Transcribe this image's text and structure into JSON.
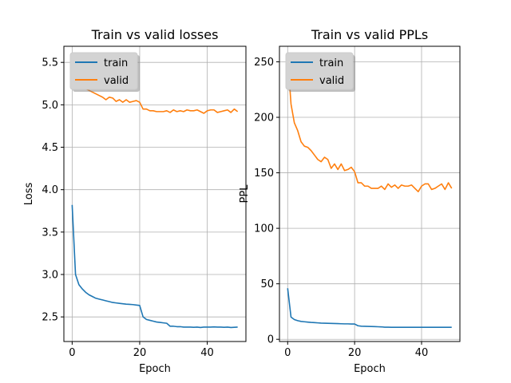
{
  "chart_data": [
    {
      "type": "line",
      "title": "Train vs valid losses",
      "xlabel": "Epoch",
      "ylabel": "Loss",
      "xlim": [
        -2.45,
        51.45
      ],
      "ylim": [
        2.21,
        5.69
      ],
      "xticks": [
        0,
        20,
        40
      ],
      "yticks": [
        2.5,
        3.0,
        3.5,
        4.0,
        4.5,
        5.0,
        5.5
      ],
      "ytick_labels": [
        "2.5",
        "3.0",
        "3.5",
        "4.0",
        "4.5",
        "5.0",
        "5.5"
      ],
      "grid": true,
      "legend": "upper-left",
      "colors": {
        "train": "#1f77b4",
        "valid": "#ff7f0e"
      },
      "series": [
        {
          "name": "train",
          "x": [
            0,
            1,
            2,
            3,
            4,
            5,
            6,
            7,
            8,
            9,
            10,
            11,
            12,
            13,
            14,
            15,
            16,
            17,
            18,
            19,
            20,
            21,
            22,
            23,
            24,
            25,
            26,
            27,
            28,
            29,
            30,
            31,
            32,
            33,
            34,
            35,
            36,
            37,
            38,
            39,
            40,
            41,
            42,
            43,
            44,
            45,
            46,
            47,
            48,
            49
          ],
          "y": [
            3.82,
            3.0,
            2.88,
            2.83,
            2.79,
            2.76,
            2.74,
            2.72,
            2.71,
            2.7,
            2.69,
            2.68,
            2.67,
            2.665,
            2.66,
            2.655,
            2.65,
            2.648,
            2.645,
            2.64,
            2.635,
            2.5,
            2.47,
            2.46,
            2.45,
            2.44,
            2.435,
            2.43,
            2.425,
            2.39,
            2.39,
            2.385,
            2.385,
            2.38,
            2.38,
            2.38,
            2.378,
            2.38,
            2.375,
            2.38,
            2.38,
            2.38,
            2.382,
            2.38,
            2.38,
            2.378,
            2.38,
            2.375,
            2.378,
            2.38
          ]
        },
        {
          "name": "valid",
          "x": [
            0,
            1,
            2,
            3,
            4,
            5,
            6,
            7,
            8,
            9,
            10,
            11,
            12,
            13,
            14,
            15,
            16,
            17,
            18,
            19,
            20,
            21,
            22,
            23,
            24,
            25,
            26,
            27,
            28,
            29,
            30,
            31,
            32,
            33,
            34,
            35,
            36,
            37,
            38,
            39,
            40,
            41,
            42,
            43,
            44,
            45,
            46,
            47,
            48,
            49
          ],
          "y": [
            5.55,
            5.35,
            5.27,
            5.24,
            5.19,
            5.17,
            5.15,
            5.13,
            5.11,
            5.09,
            5.06,
            5.09,
            5.08,
            5.04,
            5.06,
            5.03,
            5.06,
            5.03,
            5.04,
            5.05,
            5.03,
            4.95,
            4.95,
            4.93,
            4.93,
            4.92,
            4.92,
            4.92,
            4.93,
            4.91,
            4.94,
            4.92,
            4.93,
            4.92,
            4.94,
            4.93,
            4.93,
            4.94,
            4.92,
            4.9,
            4.93,
            4.94,
            4.94,
            4.91,
            4.92,
            4.93,
            4.94,
            4.91,
            4.95,
            4.92
          ]
        }
      ]
    },
    {
      "type": "line",
      "title": "Train vs valid PPLs",
      "xlabel": "Epoch",
      "ylabel": "PPL",
      "xlim": [
        -2.45,
        51.45
      ],
      "ylim": [
        -2,
        264
      ],
      "xticks": [
        0,
        20,
        40
      ],
      "yticks": [
        0,
        50,
        100,
        150,
        200,
        250
      ],
      "ytick_labels": [
        "0",
        "50",
        "100",
        "150",
        "200",
        "250"
      ],
      "grid": true,
      "legend": "upper-left",
      "colors": {
        "train": "#1f77b4",
        "valid": "#ff7f0e"
      },
      "series": [
        {
          "name": "train",
          "x": [
            0,
            1,
            2,
            3,
            4,
            5,
            6,
            7,
            8,
            9,
            10,
            11,
            12,
            13,
            14,
            15,
            16,
            17,
            18,
            19,
            20,
            21,
            22,
            23,
            24,
            25,
            26,
            27,
            28,
            29,
            30,
            31,
            32,
            33,
            34,
            35,
            36,
            37,
            38,
            39,
            40,
            41,
            42,
            43,
            44,
            45,
            46,
            47,
            48,
            49
          ],
          "y": [
            46,
            20,
            17.8,
            16.8,
            16.1,
            15.8,
            15.5,
            15.2,
            15.0,
            14.8,
            14.6,
            14.5,
            14.4,
            14.3,
            14.2,
            14.1,
            14.0,
            13.9,
            13.9,
            13.8,
            13.8,
            12.2,
            11.8,
            11.7,
            11.6,
            11.5,
            11.4,
            11.3,
            11.2,
            10.9,
            10.9,
            10.8,
            10.8,
            10.8,
            10.8,
            10.8,
            10.8,
            10.8,
            10.8,
            10.8,
            10.8,
            10.8,
            10.8,
            10.8,
            10.8,
            10.8,
            10.8,
            10.8,
            10.8,
            10.8
          ]
        },
        {
          "name": "valid",
          "x": [
            0,
            1,
            2,
            3,
            4,
            5,
            6,
            7,
            8,
            9,
            10,
            11,
            12,
            13,
            14,
            15,
            16,
            17,
            18,
            19,
            20,
            21,
            22,
            23,
            24,
            25,
            26,
            27,
            28,
            29,
            30,
            31,
            32,
            33,
            34,
            35,
            36,
            37,
            38,
            39,
            40,
            41,
            42,
            43,
            44,
            45,
            46,
            47,
            48,
            49
          ],
          "y": [
            255,
            212,
            195,
            188,
            178,
            174,
            173,
            170,
            166,
            162,
            160,
            164,
            162,
            154,
            158,
            153,
            158,
            152,
            153,
            155,
            151,
            141,
            141,
            138,
            138,
            136,
            136,
            136,
            138,
            135,
            140,
            137,
            139,
            136,
            139,
            138,
            138,
            139,
            136,
            133,
            138,
            140,
            140,
            135,
            136,
            138,
            140,
            135,
            141,
            136
          ]
        }
      ]
    }
  ]
}
